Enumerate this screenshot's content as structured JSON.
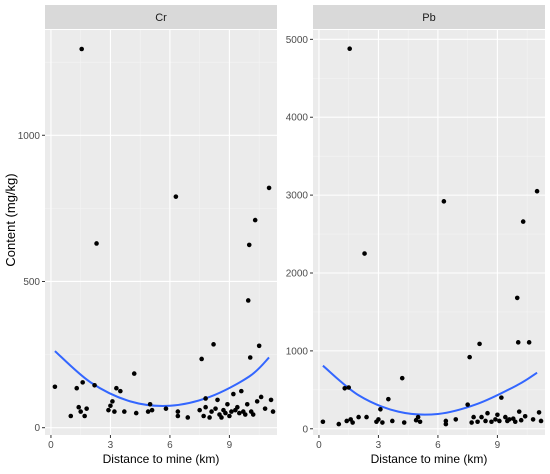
{
  "chart_data": {
    "type": "scatter",
    "ylabel": "Content (mg/kg)",
    "facets": [
      {
        "title": "Cr",
        "xlabel": "Distance to mine (km)",
        "xlim": [
          -0.3,
          11.4
        ],
        "ylim": [
          -25,
          1360
        ],
        "x_ticks": [
          0,
          3,
          6,
          9
        ],
        "x_tick_labels": [
          "0",
          "3",
          "6",
          "9"
        ],
        "y_ticks": [
          0,
          500,
          1000
        ],
        "y_tick_labels": [
          "0",
          "500",
          "1000"
        ],
        "points": [
          [
            0.2,
            140
          ],
          [
            1.0,
            40
          ],
          [
            1.3,
            135
          ],
          [
            1.4,
            70
          ],
          [
            1.5,
            55
          ],
          [
            1.55,
            1295
          ],
          [
            1.6,
            155
          ],
          [
            1.7,
            40
          ],
          [
            1.8,
            65
          ],
          [
            2.2,
            145
          ],
          [
            2.3,
            630
          ],
          [
            2.9,
            60
          ],
          [
            3.0,
            75
          ],
          [
            3.1,
            90
          ],
          [
            3.2,
            55
          ],
          [
            3.3,
            135
          ],
          [
            3.5,
            125
          ],
          [
            3.7,
            55
          ],
          [
            4.2,
            185
          ],
          [
            4.3,
            50
          ],
          [
            4.9,
            55
          ],
          [
            5.0,
            80
          ],
          [
            5.1,
            60
          ],
          [
            5.8,
            65
          ],
          [
            6.3,
            790
          ],
          [
            6.4,
            55
          ],
          [
            6.4,
            40
          ],
          [
            6.9,
            35
          ],
          [
            7.5,
            60
          ],
          [
            7.6,
            235
          ],
          [
            7.7,
            40
          ],
          [
            7.8,
            100
          ],
          [
            7.8,
            70
          ],
          [
            8.0,
            35
          ],
          [
            8.1,
            55
          ],
          [
            8.2,
            285
          ],
          [
            8.3,
            65
          ],
          [
            8.4,
            95
          ],
          [
            8.5,
            45
          ],
          [
            8.6,
            35
          ],
          [
            8.7,
            60
          ],
          [
            8.8,
            50
          ],
          [
            8.9,
            80
          ],
          [
            9.0,
            40
          ],
          [
            9.1,
            55
          ],
          [
            9.2,
            115
          ],
          [
            9.3,
            60
          ],
          [
            9.4,
            70
          ],
          [
            9.5,
            50
          ],
          [
            9.6,
            125
          ],
          [
            9.7,
            55
          ],
          [
            9.8,
            45
          ],
          [
            9.9,
            80
          ],
          [
            9.95,
            435
          ],
          [
            10.0,
            625
          ],
          [
            10.05,
            240
          ],
          [
            10.1,
            55
          ],
          [
            10.2,
            45
          ],
          [
            10.3,
            710
          ],
          [
            10.4,
            90
          ],
          [
            10.5,
            280
          ],
          [
            10.6,
            105
          ],
          [
            10.8,
            65
          ],
          [
            11.0,
            820
          ],
          [
            11.1,
            95
          ],
          [
            11.2,
            55
          ]
        ],
        "trend": [
          [
            0.2,
            262
          ],
          [
            2,
            155
          ],
          [
            4,
            90
          ],
          [
            6,
            75
          ],
          [
            8,
            105
          ],
          [
            10,
            175
          ],
          [
            11.0,
            240
          ]
        ]
      },
      {
        "title": "Pb",
        "xlabel": "Distance to mine (km)",
        "xlim": [
          -0.3,
          11.4
        ],
        "ylim": [
          -80,
          5120
        ],
        "x_ticks": [
          0,
          3,
          6,
          9
        ],
        "x_tick_labels": [
          "0",
          "3",
          "6",
          "9"
        ],
        "y_ticks": [
          0,
          1000,
          2000,
          3000,
          4000,
          5000
        ],
        "y_tick_labels": [
          "0",
          "1000",
          "2000",
          "3000",
          "4000",
          "5000"
        ],
        "points": [
          [
            0.2,
            90
          ],
          [
            1.0,
            60
          ],
          [
            1.3,
            520
          ],
          [
            1.4,
            100
          ],
          [
            1.5,
            530
          ],
          [
            1.55,
            4880
          ],
          [
            1.6,
            120
          ],
          [
            1.7,
            80
          ],
          [
            2.0,
            150
          ],
          [
            2.3,
            2250
          ],
          [
            2.4,
            150
          ],
          [
            2.9,
            90
          ],
          [
            3.0,
            120
          ],
          [
            3.1,
            250
          ],
          [
            3.2,
            80
          ],
          [
            3.5,
            380
          ],
          [
            3.7,
            100
          ],
          [
            4.2,
            650
          ],
          [
            4.3,
            80
          ],
          [
            4.9,
            110
          ],
          [
            5.0,
            150
          ],
          [
            5.1,
            90
          ],
          [
            6.3,
            2920
          ],
          [
            6.4,
            100
          ],
          [
            6.4,
            60
          ],
          [
            6.9,
            120
          ],
          [
            7.5,
            310
          ],
          [
            7.6,
            920
          ],
          [
            7.7,
            80
          ],
          [
            7.8,
            150
          ],
          [
            8.0,
            90
          ],
          [
            8.1,
            1090
          ],
          [
            8.2,
            150
          ],
          [
            8.4,
            100
          ],
          [
            8.5,
            200
          ],
          [
            8.7,
            90
          ],
          [
            8.9,
            120
          ],
          [
            9.0,
            180
          ],
          [
            9.1,
            100
          ],
          [
            9.2,
            400
          ],
          [
            9.4,
            150
          ],
          [
            9.5,
            100
          ],
          [
            9.6,
            120
          ],
          [
            9.8,
            130
          ],
          [
            9.9,
            90
          ],
          [
            10.0,
            1680
          ],
          [
            10.05,
            1110
          ],
          [
            10.1,
            220
          ],
          [
            10.2,
            110
          ],
          [
            10.3,
            2660
          ],
          [
            10.4,
            160
          ],
          [
            10.6,
            1110
          ],
          [
            10.8,
            120
          ],
          [
            11.0,
            3050
          ],
          [
            11.1,
            210
          ],
          [
            11.2,
            100
          ]
        ],
        "trend": [
          [
            0.2,
            810
          ],
          [
            2,
            430
          ],
          [
            4,
            220
          ],
          [
            6,
            190
          ],
          [
            8,
            320
          ],
          [
            10,
            560
          ],
          [
            11.0,
            720
          ]
        ]
      }
    ],
    "colors": {
      "panel_bg": "#ebebeb",
      "strip_bg": "#d9d9d9",
      "grid_major": "#ffffff",
      "grid_minor": "#f4f4f4",
      "point": "#000000",
      "trend": "#3366ff",
      "axis_text": "#4d4d4d"
    }
  }
}
